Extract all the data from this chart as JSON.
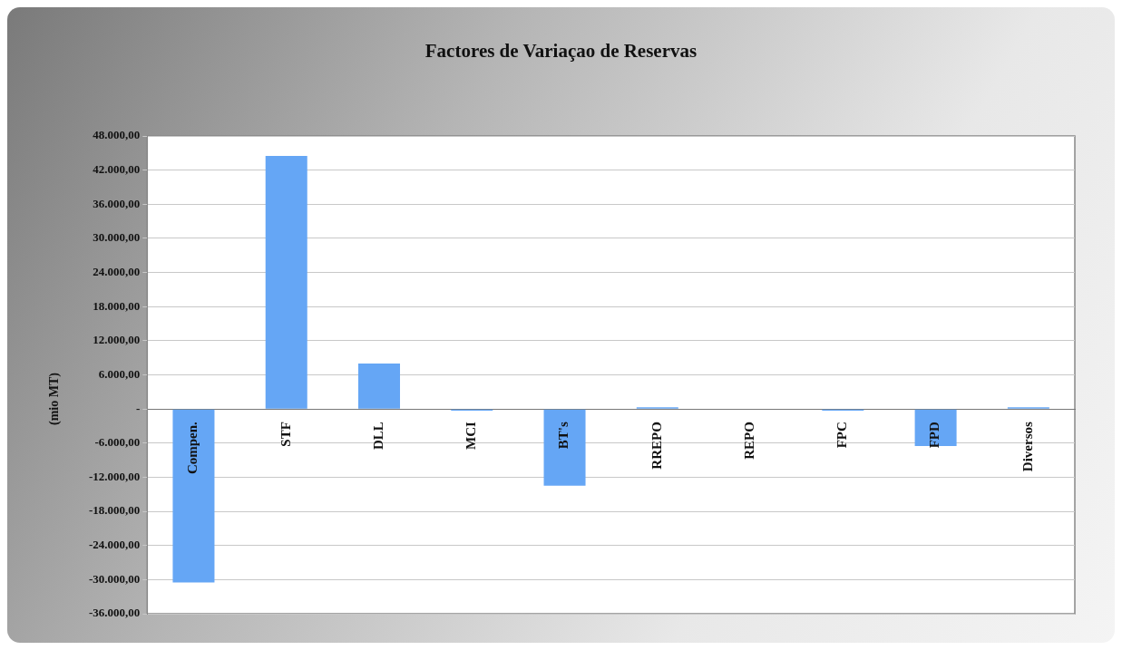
{
  "chart_data": {
    "type": "bar",
    "title": "Factores de Variaçao  de Reservas",
    "ylabel": "(mio MT)",
    "categories": [
      "Compen.",
      "STF",
      "DLL",
      "MCI",
      "BT's",
      "RREPO",
      "REPO",
      "FPC",
      "FPD",
      "Diversos"
    ],
    "values": [
      -30500,
      44500,
      8000,
      -300,
      -13500,
      300,
      0,
      -300,
      -6500,
      300
    ],
    "color": "#65a6f5",
    "ylim": [
      -36000,
      48000
    ],
    "yticks": [
      {
        "value": -36000,
        "label": "-36.000,00"
      },
      {
        "value": -30000,
        "label": "-30.000,00"
      },
      {
        "value": -24000,
        "label": "-24.000,00"
      },
      {
        "value": -18000,
        "label": "-18.000,00"
      },
      {
        "value": -12000,
        "label": "-12.000,00"
      },
      {
        "value": -6000,
        "label": "-6.000,00"
      },
      {
        "value": 0,
        "label": "-"
      },
      {
        "value": 6000,
        "label": "6.000,00"
      },
      {
        "value": 12000,
        "label": "12.000,00"
      },
      {
        "value": 18000,
        "label": "18.000,00"
      },
      {
        "value": 24000,
        "label": "24.000,00"
      },
      {
        "value": 30000,
        "label": "30.000,00"
      },
      {
        "value": 36000,
        "label": "36.000,00"
      },
      {
        "value": 42000,
        "label": "42.000,00"
      },
      {
        "value": 48000,
        "label": "48.000,00"
      }
    ],
    "grid": "y",
    "legend": false
  }
}
